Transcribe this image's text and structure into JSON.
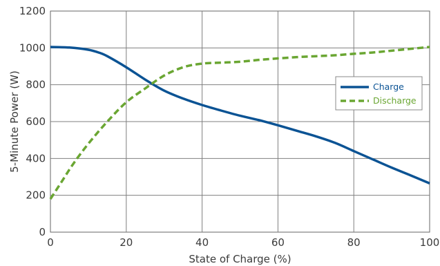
{
  "chart_data": {
    "type": "line",
    "title": "",
    "xlabel": "State of Charge (%)",
    "ylabel": "5-Minute Power (W)",
    "xlim": [
      0,
      100
    ],
    "ylim": [
      0,
      1200
    ],
    "xticks": [
      0,
      20,
      40,
      60,
      80,
      100
    ],
    "yticks": [
      0,
      200,
      400,
      600,
      800,
      1000,
      1200
    ],
    "xtick_labels": [
      "0",
      "20",
      "40",
      "60",
      "80",
      "100"
    ],
    "ytick_labels": [
      "0",
      "200",
      "400",
      "600",
      "800",
      "1000",
      "1200"
    ],
    "grid": true,
    "legend_position": "right",
    "series": [
      {
        "name": "Charge",
        "color": "#0b5394",
        "line_style": "solid",
        "x": [
          0,
          5,
          10,
          13,
          15,
          20,
          25,
          30,
          35,
          40,
          45,
          50,
          55,
          60,
          65,
          70,
          75,
          80,
          85,
          90,
          95,
          100
        ],
        "y": [
          1005,
          1002,
          990,
          973,
          955,
          895,
          828,
          768,
          725,
          690,
          660,
          632,
          608,
          580,
          550,
          520,
          485,
          440,
          395,
          350,
          308,
          265
        ]
      },
      {
        "name": "Discharge",
        "color": "#6aa632",
        "line_style": "dashed",
        "x": [
          0,
          3,
          6,
          10,
          15,
          20,
          25,
          30,
          35,
          40,
          45,
          50,
          55,
          60,
          65,
          70,
          75,
          80,
          85,
          90,
          95,
          100
        ],
        "y": [
          180,
          275,
          370,
          480,
          600,
          705,
          780,
          850,
          895,
          915,
          920,
          925,
          935,
          943,
          950,
          955,
          960,
          968,
          975,
          985,
          995,
          1005
        ]
      }
    ]
  }
}
